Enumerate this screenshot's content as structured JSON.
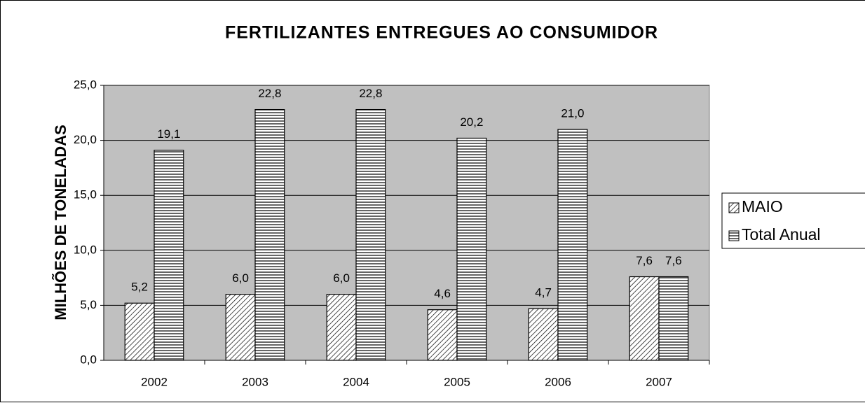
{
  "chart_data": {
    "type": "bar",
    "title": "FERTILIZANTES ENTREGUES AO CONSUMIDOR",
    "y_label": "MILHÕES DE TONELADAS",
    "categories": [
      "2002",
      "2003",
      "2004",
      "2005",
      "2006",
      "2007"
    ],
    "series": [
      {
        "name": "MAIO",
        "values": [
          5.2,
          6.0,
          6.0,
          4.6,
          4.7,
          7.6
        ],
        "value_labels": [
          "5,2",
          "6,0",
          "6,0",
          "4,6",
          "4,7",
          "7,6"
        ]
      },
      {
        "name": "Total Anual",
        "values": [
          19.1,
          22.8,
          22.8,
          20.2,
          21.0,
          7.6
        ],
        "value_labels": [
          "19,1",
          "22,8",
          "22,8",
          "20,2",
          "21,0",
          "7,6"
        ]
      }
    ],
    "ylim": [
      0,
      25
    ],
    "yticks": [
      {
        "value": 0,
        "label": "0,0"
      },
      {
        "value": 5,
        "label": "5,0"
      },
      {
        "value": 10,
        "label": "10,0"
      },
      {
        "value": 15,
        "label": "15,0"
      },
      {
        "value": 20,
        "label": "20,0"
      },
      {
        "value": 25,
        "label": "25,0"
      }
    ],
    "grid": true,
    "legend": "right"
  }
}
